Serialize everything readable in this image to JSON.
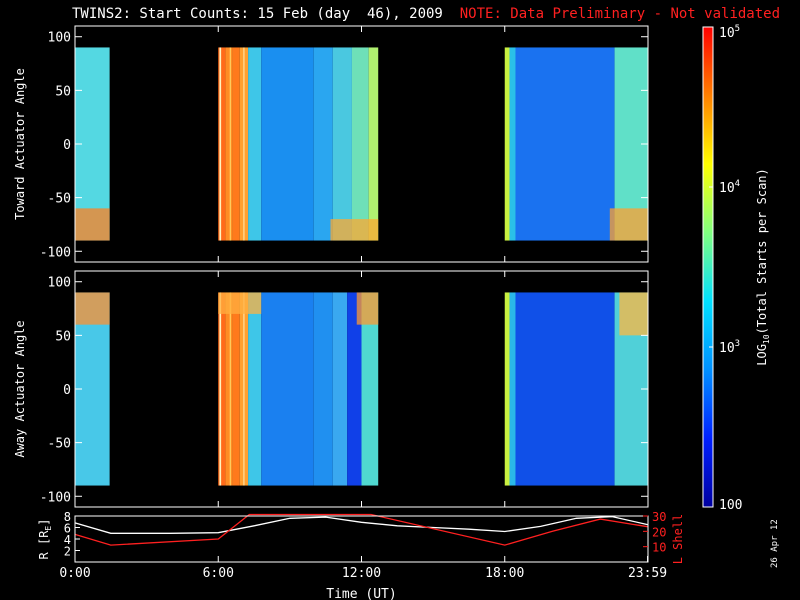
{
  "title": {
    "main": "TWINS2: Start Counts: 15 Feb (day  46), 2009",
    "note": "NOTE: Data Preliminary - Not validated"
  },
  "stamp": "26 Apr 12",
  "chart_data": [
    {
      "type": "heatmap",
      "panel": "top",
      "ylabel": "Toward Actuator Angle",
      "ylim": [
        -110,
        110
      ],
      "yticks": [
        100,
        50,
        0,
        -50,
        -100
      ],
      "data_extent": {
        "y": [
          -90,
          90
        ]
      },
      "x_unit": "hours UT",
      "xlim": [
        0,
        24
      ],
      "data_blocks": [
        [
          0,
          1.45
        ],
        [
          6.0,
          12.7
        ],
        [
          18.0,
          23.98
        ]
      ],
      "bands": [
        [
          0.0,
          1.45,
          "#54d8e2"
        ],
        [
          6.0,
          6.3,
          "#ff6a1a"
        ],
        [
          6.3,
          6.6,
          "#ff8c24"
        ],
        [
          6.6,
          6.9,
          "#ff7a1c"
        ],
        [
          6.9,
          7.25,
          "#ffa030"
        ],
        [
          7.25,
          7.8,
          "#3ec6e8"
        ],
        [
          7.8,
          10.0,
          "#1a8ff0"
        ],
        [
          10.0,
          10.8,
          "#2aa6f0"
        ],
        [
          10.8,
          11.6,
          "#4ac8e0"
        ],
        [
          11.6,
          12.3,
          "#6ee0b8"
        ],
        [
          12.3,
          12.7,
          "#b0f070"
        ],
        [
          18.0,
          18.2,
          "#c8f040"
        ],
        [
          18.2,
          18.45,
          "#2ac0e8"
        ],
        [
          18.45,
          22.6,
          "#1a72f0"
        ],
        [
          22.6,
          23.98,
          "#60e0c8"
        ]
      ],
      "streaks": [
        [
          6.05,
          6.12,
          "#fff5c0"
        ],
        [
          6.48,
          6.53,
          "#ffd060"
        ],
        [
          7.05,
          7.1,
          "#ffe0a0"
        ]
      ],
      "bottom_hot": [
        [
          0.0,
          1.45,
          -90,
          -60,
          "#ff8020"
        ],
        [
          10.7,
          12.7,
          -90,
          -70,
          "#ffaa30"
        ],
        [
          22.4,
          23.98,
          -90,
          -60,
          "#ffa030"
        ]
      ]
    },
    {
      "type": "heatmap",
      "panel": "middle",
      "ylabel": "Away Actuator Angle",
      "ylim": [
        -110,
        110
      ],
      "yticks": [
        100,
        50,
        0,
        -50,
        -100
      ],
      "data_extent": {
        "y": [
          -90,
          90
        ]
      },
      "x_unit": "hours UT",
      "xlim": [
        0,
        24
      ],
      "data_blocks": [
        [
          0,
          1.45
        ],
        [
          6.0,
          12.7
        ],
        [
          18.0,
          23.98
        ]
      ],
      "bands": [
        [
          0.0,
          1.45,
          "#48c8e8"
        ],
        [
          6.0,
          6.3,
          "#ff6a1a"
        ],
        [
          6.3,
          6.6,
          "#ff8c24"
        ],
        [
          6.6,
          6.9,
          "#ff7a1c"
        ],
        [
          6.9,
          7.25,
          "#ffa030"
        ],
        [
          7.25,
          7.8,
          "#3ec6e8"
        ],
        [
          7.8,
          10.0,
          "#1a80f0"
        ],
        [
          10.0,
          10.8,
          "#2090f0"
        ],
        [
          10.8,
          11.4,
          "#3aa8f0"
        ],
        [
          11.4,
          12.0,
          "#1040e8"
        ],
        [
          12.0,
          12.7,
          "#50d8d0"
        ],
        [
          18.0,
          18.2,
          "#c8f040"
        ],
        [
          18.2,
          18.45,
          "#2ab8e8"
        ],
        [
          18.45,
          22.6,
          "#1050e8"
        ],
        [
          22.6,
          23.98,
          "#50d0d8"
        ]
      ],
      "streaks": [
        [
          6.05,
          6.12,
          "#fff5c0"
        ],
        [
          6.48,
          6.53,
          "#ffd060"
        ],
        [
          7.05,
          7.1,
          "#ffe0a0"
        ]
      ],
      "top_hot": [
        [
          0.0,
          1.45,
          60,
          90,
          "#ff9030"
        ],
        [
          6.0,
          7.8,
          70,
          90,
          "#ffb040"
        ],
        [
          11.8,
          12.7,
          60,
          90,
          "#ff9a30"
        ],
        [
          22.8,
          23.98,
          50,
          90,
          "#ffb840"
        ]
      ]
    },
    {
      "type": "line",
      "panel": "bottom",
      "ylabel_left": "R [R",
      "ylabel_left_sub": "E",
      "ylabel_left_end": "]",
      "ylabel_right": "L Shell",
      "ylim_left": [
        0,
        8
      ],
      "ylim_right": [
        0,
        30
      ],
      "yticks_left": [
        2,
        4,
        6,
        8
      ],
      "yticks_right": [
        10,
        20,
        30
      ],
      "xlim": [
        0,
        24
      ],
      "xticks": [
        0,
        6,
        12,
        18,
        23.98
      ],
      "xticklabels": [
        "0:00",
        "6:00",
        "12:00",
        "18:00",
        "23:59"
      ],
      "xlabel": "Time (UT)",
      "series": [
        {
          "axis": "left",
          "color": "#ffffff",
          "x": [
            0,
            1.5,
            4,
            6,
            7.5,
            9,
            10.5,
            12,
            13.5,
            15,
            16.5,
            18,
            19.5,
            21,
            22.5,
            23.98
          ],
          "y": [
            6.8,
            5.0,
            5.0,
            5.1,
            6.3,
            7.6,
            7.8,
            6.9,
            6.3,
            6.0,
            5.7,
            5.3,
            6.2,
            7.6,
            7.9,
            6.5
          ]
        },
        {
          "axis": "right",
          "color": "#ff2020",
          "x": [
            0,
            1.5,
            6,
            7.3,
            12.4,
            18,
            20,
            22,
            23.98
          ],
          "y": [
            18,
            11,
            15,
            31,
            31,
            11,
            20,
            28,
            23
          ]
        }
      ]
    },
    {
      "type": "colorbar",
      "scale": "log",
      "range": [
        100,
        100000
      ],
      "ticks": [
        100,
        1000,
        10000,
        100000
      ],
      "ticklabels": [
        {
          "base": "100",
          "sup": ""
        },
        {
          "base": "10",
          "sup": "3"
        },
        {
          "base": "10",
          "sup": "4"
        },
        {
          "base": "10",
          "sup": "5"
        }
      ],
      "label": "LOG",
      "label_sub": "10",
      "label_end": "(Total Starts per Scan)",
      "stops": [
        "#0000a0",
        "#0020ff",
        "#0090ff",
        "#00e0ff",
        "#80ff80",
        "#ffff00",
        "#ff8000",
        "#ff0000"
      ]
    }
  ]
}
